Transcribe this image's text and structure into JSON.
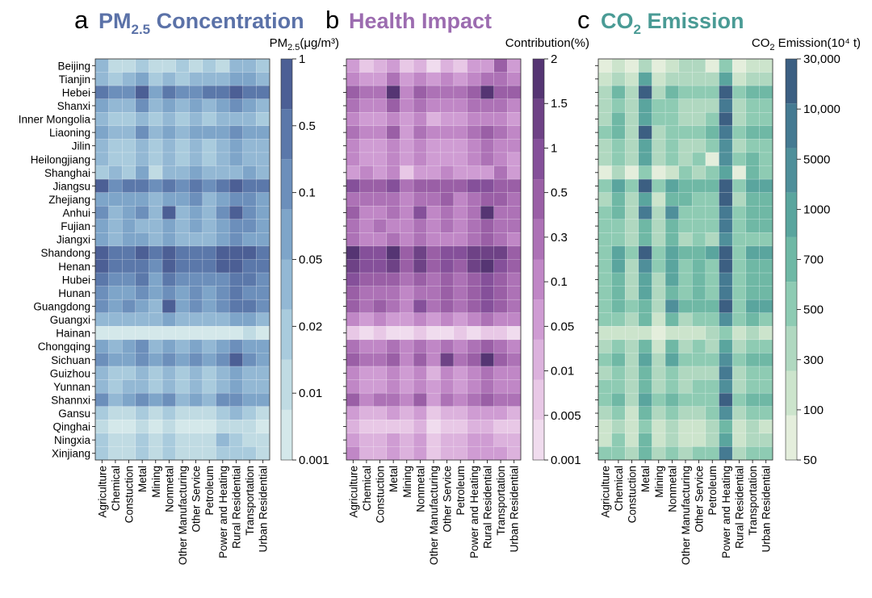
{
  "chart_data": [
    {
      "type": "heatmap",
      "panel_letter": "a",
      "title": {
        "main": "PM",
        "sub": "2.5",
        "rest": " Concentration"
      },
      "colorbar_label": {
        "main": "PM",
        "sub": "2.5",
        "rest": "(μg/m³)"
      },
      "colorbar_ticks": [
        "1",
        "0.5",
        "0.1",
        "0.05",
        "0.02",
        "0.01",
        "0.001"
      ],
      "colors": [
        "#d4e8ea",
        "#c0dbe3",
        "#a9cbdd",
        "#93b8d4",
        "#7ea5c9",
        "#6c8fbb",
        "#5b78aa",
        "#4c5f95"
      ],
      "title_color": "#5b72a8"
    },
    {
      "type": "heatmap",
      "panel_letter": "b",
      "title": {
        "main": "Health Impact",
        "sub": "",
        "rest": ""
      },
      "colorbar_label": {
        "main": "Contribution(%)",
        "sub": "",
        "rest": ""
      },
      "colorbar_ticks": [
        "2",
        "1.5",
        "1",
        "0.5",
        "0.3",
        "0.1",
        "0.05",
        "0.01",
        "0.005",
        "0.001"
      ],
      "colors": [
        "#f0dcee",
        "#e8c8e6",
        "#dcb2dd",
        "#cf9cd3",
        "#c087c6",
        "#ad72b6",
        "#9a5fa6",
        "#85509a",
        "#6e4286",
        "#553573"
      ],
      "title_color": "#9c6cb0"
    },
    {
      "type": "heatmap",
      "panel_letter": "c",
      "title": {
        "main": "CO",
        "sub": "2",
        "rest": " Emission"
      },
      "colorbar_label": {
        "main": "CO",
        "sub": "2",
        "rest": " Emission(10⁴ t)"
      },
      "colorbar_ticks": [
        "30,000",
        "10,000",
        "5000",
        "1000",
        "700",
        "500",
        "300",
        "100",
        "50"
      ],
      "colors": [
        "#e4eedc",
        "#cce4cc",
        "#b0d8c0",
        "#8ecbb3",
        "#6fb8a5",
        "#5aa59e",
        "#4f8f9a",
        "#457a92",
        "#3c5f82"
      ],
      "title_color": "#4a9b95"
    }
  ],
  "provinces": [
    "Beijing",
    "Tianjin",
    "Hebei",
    "Shanxi",
    "Inner Mongolia",
    "Liaoning",
    "Jilin",
    "Heilongjiang",
    "Shanghai",
    "Jiangsu",
    "Zhejiang",
    "Anhui",
    "Fujian",
    "Jiangxi",
    "Shandong",
    "Henan",
    "Hubei",
    "Hunan",
    "Guangdong",
    "Guangxi",
    "Hainan",
    "Chongqing",
    "Sichuan",
    "Guizhou",
    "Yunnan",
    "Shannxi",
    "Gansu",
    "Qinghai",
    "Ningxia",
    "Xinjiang"
  ],
  "sectors": [
    "Agriculture",
    "Chemical",
    "Constuction",
    "Metal",
    "Mining",
    "Nonmetal",
    "Other Manufacturing",
    "Other Service",
    "Petroleum",
    "Power and Heating",
    "Rural Residential",
    "Transportation",
    "Urban Residential"
  ],
  "values_a": [
    [
      3,
      1,
      1,
      2,
      1,
      1,
      2,
      1,
      2,
      1,
      3,
      3,
      2
    ],
    [
      3,
      2,
      3,
      4,
      2,
      3,
      2,
      3,
      3,
      3,
      4,
      4,
      3
    ],
    [
      6,
      5,
      5,
      7,
      4,
      6,
      5,
      5,
      6,
      6,
      7,
      6,
      6
    ],
    [
      4,
      3,
      3,
      5,
      3,
      4,
      3,
      4,
      3,
      4,
      5,
      4,
      3
    ],
    [
      3,
      2,
      2,
      3,
      2,
      3,
      2,
      3,
      2,
      3,
      3,
      3,
      2
    ],
    [
      4,
      3,
      3,
      5,
      3,
      4,
      3,
      4,
      4,
      4,
      5,
      4,
      4
    ],
    [
      3,
      2,
      2,
      3,
      2,
      3,
      2,
      3,
      2,
      3,
      4,
      3,
      3
    ],
    [
      3,
      2,
      2,
      3,
      2,
      3,
      2,
      3,
      2,
      3,
      4,
      3,
      3
    ],
    [
      2,
      3,
      2,
      4,
      1,
      3,
      3,
      4,
      3,
      3,
      3,
      4,
      3
    ],
    [
      7,
      5,
      6,
      6,
      5,
      6,
      5,
      6,
      5,
      6,
      7,
      6,
      6
    ],
    [
      4,
      4,
      4,
      4,
      3,
      4,
      4,
      5,
      3,
      4,
      5,
      5,
      4
    ],
    [
      5,
      3,
      4,
      5,
      3,
      7,
      3,
      4,
      3,
      5,
      7,
      5,
      4
    ],
    [
      4,
      3,
      4,
      3,
      3,
      4,
      3,
      4,
      3,
      4,
      5,
      5,
      4
    ],
    [
      4,
      3,
      4,
      4,
      3,
      4,
      3,
      3,
      3,
      4,
      5,
      4,
      4
    ],
    [
      7,
      6,
      6,
      7,
      6,
      7,
      6,
      6,
      6,
      7,
      7,
      7,
      6
    ],
    [
      7,
      6,
      6,
      6,
      5,
      7,
      6,
      6,
      6,
      7,
      7,
      6,
      6
    ],
    [
      6,
      5,
      5,
      6,
      4,
      6,
      5,
      5,
      5,
      5,
      6,
      6,
      5
    ],
    [
      5,
      4,
      4,
      5,
      4,
      5,
      4,
      5,
      4,
      5,
      6,
      5,
      5
    ],
    [
      5,
      4,
      5,
      4,
      3,
      7,
      4,
      5,
      4,
      5,
      6,
      6,
      5
    ],
    [
      3,
      3,
      3,
      3,
      3,
      4,
      3,
      3,
      3,
      3,
      4,
      4,
      3
    ],
    [
      0,
      0,
      0,
      0,
      0,
      0,
      0,
      0,
      0,
      0,
      0,
      1,
      0
    ],
    [
      4,
      3,
      4,
      5,
      3,
      4,
      3,
      4,
      3,
      4,
      5,
      4,
      4
    ],
    [
      5,
      4,
      4,
      5,
      4,
      5,
      4,
      5,
      4,
      5,
      7,
      5,
      4
    ],
    [
      3,
      2,
      2,
      3,
      2,
      3,
      2,
      3,
      2,
      3,
      4,
      3,
      3
    ],
    [
      3,
      2,
      3,
      3,
      2,
      3,
      2,
      3,
      2,
      3,
      4,
      3,
      3
    ],
    [
      5,
      3,
      4,
      5,
      4,
      5,
      3,
      4,
      3,
      5,
      5,
      4,
      4
    ],
    [
      2,
      1,
      1,
      2,
      1,
      2,
      1,
      1,
      1,
      2,
      3,
      2,
      1
    ],
    [
      1,
      0,
      0,
      1,
      0,
      1,
      0,
      0,
      0,
      1,
      1,
      1,
      0
    ],
    [
      2,
      1,
      1,
      2,
      1,
      2,
      1,
      1,
      1,
      3,
      2,
      1,
      1
    ],
    [
      2,
      1,
      1,
      2,
      1,
      2,
      1,
      1,
      1,
      2,
      2,
      2,
      1
    ]
  ],
  "values_b": [
    [
      3,
      1,
      2,
      3,
      1,
      2,
      0,
      2,
      1,
      3,
      3,
      6,
      3
    ],
    [
      4,
      3,
      3,
      5,
      3,
      4,
      3,
      4,
      3,
      4,
      5,
      5,
      4
    ],
    [
      6,
      5,
      5,
      9,
      4,
      6,
      5,
      5,
      5,
      6,
      9,
      6,
      6
    ],
    [
      5,
      4,
      4,
      6,
      4,
      5,
      4,
      4,
      4,
      5,
      5,
      5,
      4
    ],
    [
      4,
      3,
      3,
      4,
      3,
      4,
      2,
      3,
      3,
      4,
      4,
      4,
      3
    ],
    [
      5,
      4,
      4,
      6,
      3,
      5,
      4,
      4,
      4,
      5,
      6,
      5,
      4
    ],
    [
      4,
      3,
      3,
      4,
      3,
      4,
      3,
      3,
      3,
      4,
      5,
      4,
      4
    ],
    [
      4,
      3,
      3,
      4,
      3,
      4,
      3,
      3,
      3,
      4,
      5,
      4,
      3
    ],
    [
      3,
      4,
      3,
      4,
      1,
      3,
      3,
      4,
      3,
      3,
      3,
      5,
      3
    ],
    [
      7,
      6,
      6,
      7,
      5,
      6,
      6,
      6,
      6,
      7,
      7,
      6,
      6
    ],
    [
      5,
      5,
      5,
      5,
      4,
      5,
      5,
      6,
      4,
      5,
      6,
      6,
      5
    ],
    [
      6,
      4,
      4,
      5,
      4,
      7,
      4,
      5,
      4,
      5,
      9,
      5,
      5
    ],
    [
      5,
      4,
      5,
      4,
      4,
      5,
      4,
      5,
      4,
      5,
      6,
      5,
      5
    ],
    [
      5,
      4,
      4,
      5,
      4,
      5,
      4,
      4,
      4,
      5,
      6,
      5,
      4
    ],
    [
      9,
      7,
      7,
      9,
      6,
      8,
      6,
      7,
      7,
      8,
      8,
      8,
      6
    ],
    [
      8,
      7,
      7,
      8,
      6,
      8,
      6,
      7,
      6,
      8,
      9,
      7,
      6
    ],
    [
      7,
      6,
      6,
      6,
      5,
      6,
      5,
      6,
      5,
      6,
      7,
      6,
      5
    ],
    [
      6,
      5,
      5,
      5,
      4,
      5,
      5,
      6,
      5,
      6,
      7,
      6,
      5
    ],
    [
      6,
      5,
      6,
      5,
      4,
      7,
      5,
      6,
      5,
      6,
      7,
      6,
      5
    ],
    [
      4,
      3,
      4,
      3,
      3,
      4,
      3,
      4,
      3,
      4,
      5,
      4,
      4
    ],
    [
      1,
      0,
      1,
      0,
      0,
      1,
      0,
      0,
      1,
      0,
      1,
      1,
      0
    ],
    [
      5,
      4,
      4,
      5,
      4,
      5,
      4,
      5,
      4,
      5,
      6,
      5,
      4
    ],
    [
      6,
      5,
      5,
      6,
      4,
      6,
      4,
      8,
      5,
      6,
      9,
      6,
      5
    ],
    [
      4,
      3,
      3,
      4,
      3,
      4,
      2,
      4,
      3,
      4,
      5,
      4,
      4
    ],
    [
      4,
      3,
      3,
      4,
      3,
      4,
      3,
      4,
      3,
      4,
      5,
      4,
      4
    ],
    [
      6,
      4,
      5,
      5,
      4,
      6,
      3,
      5,
      4,
      5,
      6,
      5,
      5
    ],
    [
      3,
      2,
      2,
      3,
      2,
      3,
      1,
      2,
      2,
      3,
      3,
      3,
      2
    ],
    [
      2,
      1,
      1,
      1,
      1,
      2,
      0,
      1,
      1,
      2,
      2,
      1,
      1
    ],
    [
      3,
      2,
      2,
      3,
      2,
      3,
      1,
      2,
      2,
      3,
      3,
      2,
      2
    ],
    [
      4,
      2,
      2,
      3,
      2,
      3,
      1,
      2,
      2,
      3,
      3,
      3,
      2
    ]
  ],
  "values_c": [
    [
      0,
      1,
      0,
      2,
      0,
      1,
      2,
      2,
      0,
      3,
      0,
      1,
      1
    ],
    [
      1,
      2,
      1,
      5,
      1,
      2,
      2,
      2,
      2,
      5,
      1,
      2,
      2
    ],
    [
      2,
      4,
      2,
      8,
      2,
      4,
      3,
      3,
      3,
      8,
      3,
      4,
      4
    ],
    [
      2,
      3,
      2,
      5,
      3,
      3,
      2,
      2,
      2,
      7,
      2,
      3,
      3
    ],
    [
      2,
      4,
      2,
      5,
      3,
      3,
      2,
      2,
      3,
      8,
      2,
      3,
      3
    ],
    [
      3,
      4,
      2,
      8,
      2,
      3,
      3,
      3,
      4,
      7,
      3,
      4,
      4
    ],
    [
      2,
      3,
      2,
      5,
      2,
      3,
      2,
      2,
      3,
      6,
      2,
      3,
      3
    ],
    [
      2,
      3,
      2,
      5,
      2,
      3,
      2,
      3,
      0,
      6,
      3,
      4,
      3
    ],
    [
      0,
      2,
      0,
      3,
      0,
      1,
      3,
      2,
      3,
      5,
      0,
      4,
      3
    ],
    [
      3,
      5,
      3,
      8,
      3,
      5,
      4,
      4,
      4,
      8,
      3,
      5,
      5
    ],
    [
      2,
      4,
      2,
      5,
      1,
      4,
      4,
      3,
      3,
      8,
      2,
      4,
      4
    ],
    [
      3,
      4,
      2,
      7,
      2,
      6,
      3,
      3,
      3,
      7,
      3,
      4,
      4
    ],
    [
      3,
      3,
      2,
      4,
      2,
      4,
      3,
      3,
      3,
      7,
      3,
      4,
      4
    ],
    [
      3,
      3,
      2,
      4,
      2,
      4,
      2,
      3,
      2,
      6,
      3,
      3,
      3
    ],
    [
      3,
      5,
      3,
      8,
      3,
      5,
      4,
      4,
      5,
      8,
      3,
      5,
      5
    ],
    [
      3,
      5,
      2,
      6,
      3,
      5,
      3,
      4,
      3,
      8,
      3,
      4,
      4
    ],
    [
      3,
      4,
      2,
      5,
      2,
      5,
      3,
      4,
      3,
      7,
      3,
      4,
      4
    ],
    [
      3,
      4,
      2,
      5,
      2,
      4,
      3,
      4,
      3,
      7,
      3,
      4,
      4
    ],
    [
      3,
      4,
      3,
      4,
      2,
      6,
      4,
      4,
      4,
      8,
      3,
      5,
      5
    ],
    [
      3,
      3,
      2,
      4,
      1,
      4,
      2,
      3,
      3,
      6,
      3,
      4,
      3
    ],
    [
      1,
      1,
      1,
      1,
      0,
      1,
      1,
      1,
      2,
      3,
      1,
      2,
      1
    ],
    [
      2,
      3,
      2,
      4,
      1,
      4,
      2,
      3,
      2,
      5,
      2,
      3,
      3
    ],
    [
      3,
      4,
      2,
      5,
      2,
      5,
      3,
      3,
      3,
      6,
      3,
      4,
      4
    ],
    [
      2,
      3,
      2,
      4,
      2,
      3,
      2,
      2,
      2,
      7,
      2,
      3,
      3
    ],
    [
      3,
      3,
      2,
      4,
      2,
      3,
      2,
      3,
      3,
      6,
      2,
      3,
      3
    ],
    [
      3,
      4,
      2,
      5,
      3,
      4,
      3,
      3,
      3,
      8,
      3,
      4,
      4
    ],
    [
      2,
      3,
      1,
      4,
      2,
      3,
      2,
      2,
      3,
      6,
      2,
      3,
      3
    ],
    [
      1,
      2,
      1,
      3,
      1,
      2,
      1,
      1,
      2,
      4,
      1,
      2,
      1
    ],
    [
      1,
      3,
      1,
      4,
      1,
      2,
      1,
      1,
      2,
      5,
      1,
      2,
      2
    ],
    [
      3,
      3,
      2,
      4,
      2,
      3,
      2,
      3,
      3,
      7,
      2,
      3,
      3
    ]
  ]
}
